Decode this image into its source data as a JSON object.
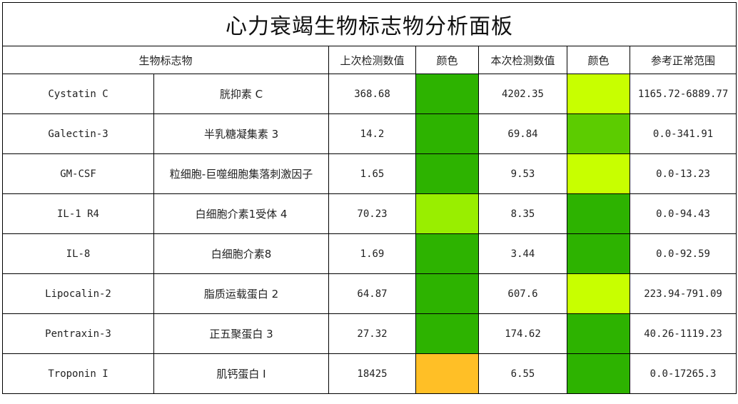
{
  "title": "心力衰竭生物标志物分析面板",
  "headers": {
    "biomarker": "生物标志物",
    "previous": "上次检测数值",
    "color1": "颜色",
    "current": "本次检测数值",
    "color2": "颜色",
    "reference": "参考正常范围"
  },
  "rows": [
    {
      "en": "Cystatin C",
      "cn": "胱抑素 C",
      "previous": "368.68",
      "prev_color": "#2db300",
      "current": "4202.35",
      "curr_color": "#c8ff00",
      "reference": "1165.72-6889.77"
    },
    {
      "en": "Galectin-3",
      "cn": "半乳糖凝集素 3",
      "previous": "14.2",
      "prev_color": "#2db300",
      "current": "69.84",
      "curr_color": "#5ccc00",
      "reference": "0.0-341.91"
    },
    {
      "en": "GM-CSF",
      "cn": "粒细胞-巨噬细胞集落刺激因子",
      "previous": "1.65",
      "prev_color": "#2db300",
      "current": "9.53",
      "curr_color": "#c8ff00",
      "reference": "0.0-13.23"
    },
    {
      "en": "IL-1 R4",
      "cn": "白细胞介素1受体 4",
      "previous": "70.23",
      "prev_color": "#99ee00",
      "current": "8.35",
      "curr_color": "#2db300",
      "reference": "0.0-94.43"
    },
    {
      "en": "IL-8",
      "cn": "白细胞介素8",
      "previous": "1.69",
      "prev_color": "#2db300",
      "current": "3.44",
      "curr_color": "#2db300",
      "reference": "0.0-92.59"
    },
    {
      "en": "Lipocalin-2",
      "cn": "脂质运载蛋白 2",
      "previous": "64.87",
      "prev_color": "#2db300",
      "current": "607.6",
      "curr_color": "#c8ff00",
      "reference": "223.94-791.09"
    },
    {
      "en": "Pentraxin-3",
      "cn": "正五聚蛋白 3",
      "previous": "27.32",
      "prev_color": "#2db300",
      "current": "174.62",
      "curr_color": "#2db300",
      "reference": "40.26-1119.23"
    },
    {
      "en": "Troponin I",
      "cn": "肌钙蛋白 I",
      "previous": "18425",
      "prev_color": "#ffbf26",
      "current": "6.55",
      "curr_color": "#2db300",
      "reference": "0.0-17265.3"
    }
  ]
}
